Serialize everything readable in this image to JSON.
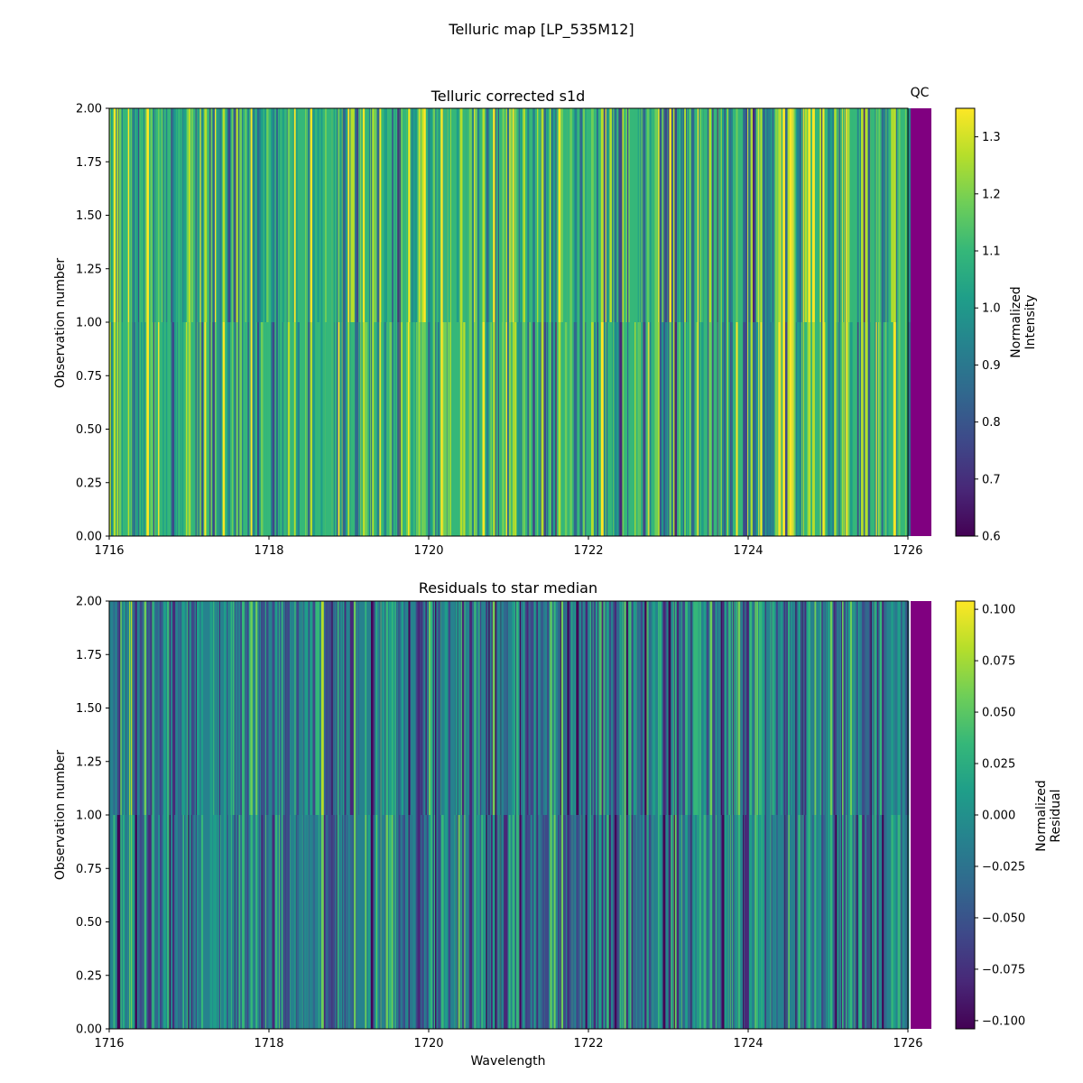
{
  "figure": {
    "suptitle": "Telluric map [LP_535M12]"
  },
  "qc_label": "QC",
  "qc_color": "#800080",
  "colormap": [
    "#440154",
    "#482878",
    "#3e4989",
    "#31688e",
    "#26828e",
    "#1f9e89",
    "#35b779",
    "#6ece58",
    "#b5de2b",
    "#fde725"
  ],
  "chart_data": [
    {
      "type": "heatmap",
      "title": "Telluric corrected s1d",
      "xlabel": "",
      "ylabel": "Observation number",
      "xlim": [
        1716,
        1726
      ],
      "ylim": [
        0,
        2
      ],
      "xticks": [
        "1716",
        "1718",
        "1720",
        "1722",
        "1724",
        "1726"
      ],
      "yticks": [
        "0.00",
        "0.25",
        "0.50",
        "0.75",
        "1.00",
        "1.25",
        "1.50",
        "1.75",
        "2.00"
      ],
      "colorbar": {
        "label_lines": [
          "Normalized",
          "Intensity"
        ],
        "range": [
          0.6,
          1.35
        ],
        "ticks": [
          "0.6",
          "0.7",
          "0.8",
          "0.9",
          "1.0",
          "1.1",
          "1.2",
          "1.3"
        ]
      },
      "rows": [
        "observation 0",
        "observation 1"
      ],
      "qc": [
        "pass",
        "pass"
      ]
    },
    {
      "type": "heatmap",
      "title": "Residuals to star median",
      "xlabel": "Wavelength",
      "ylabel": "Observation number",
      "xlim": [
        1716,
        1726
      ],
      "ylim": [
        0,
        2
      ],
      "xticks": [
        "1716",
        "1718",
        "1720",
        "1722",
        "1724",
        "1726"
      ],
      "yticks": [
        "0.00",
        "0.25",
        "0.50",
        "0.75",
        "1.00",
        "1.25",
        "1.50",
        "1.75",
        "2.00"
      ],
      "colorbar": {
        "label_lines": [
          "Normalized",
          "Residual"
        ],
        "range": [
          -0.104,
          0.104
        ],
        "ticks": [
          "0.100",
          "0.075",
          "0.050",
          "0.025",
          "0.000",
          "−0.025",
          "−0.050",
          "−0.075",
          "−0.100"
        ]
      },
      "rows": [
        "observation 0",
        "observation 1"
      ],
      "qc": [
        "pass",
        "pass"
      ]
    }
  ]
}
